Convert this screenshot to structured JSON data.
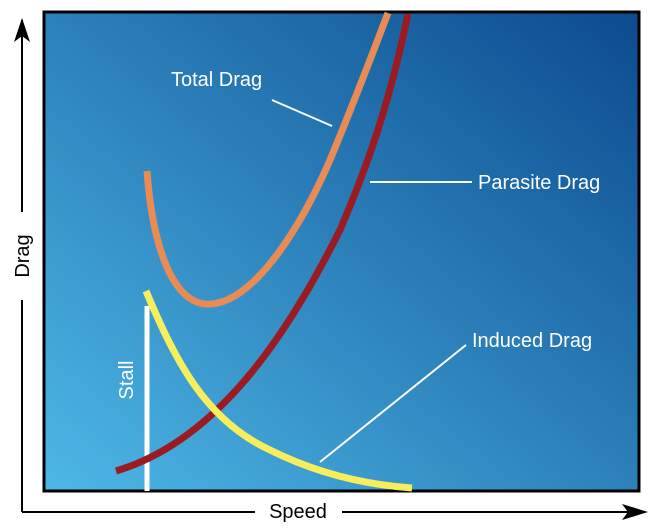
{
  "axes": {
    "x_label": "Speed",
    "y_label": "Drag"
  },
  "curves": {
    "total": {
      "label": "Total Drag",
      "color": "#E88B55"
    },
    "parasite": {
      "label": "Parasite Drag",
      "color": "#9B1B22"
    },
    "induced": {
      "label": "Induced Drag",
      "color": "#F6EE5C"
    }
  },
  "stall": {
    "label": "Stall",
    "color": "#ffffff"
  },
  "colors": {
    "plot_bg_top_right": "#0B4A8F",
    "plot_bg_bottom_left": "#4DB8E6",
    "frame": "#000000"
  }
}
